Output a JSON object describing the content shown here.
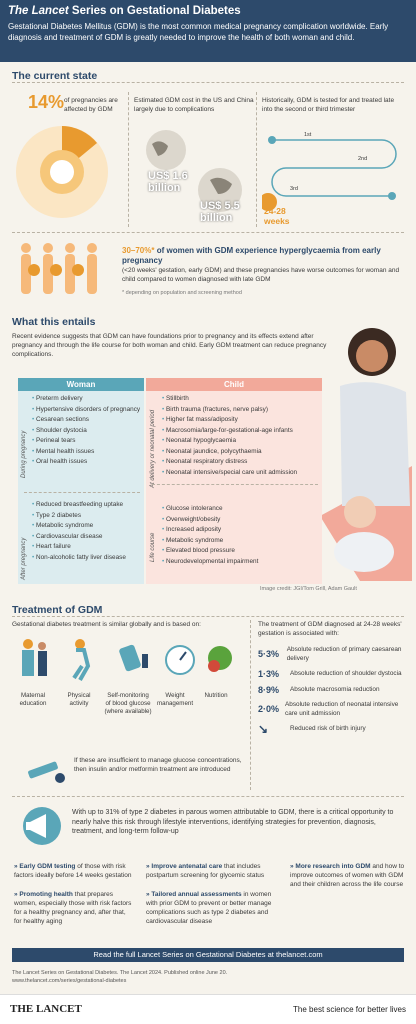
{
  "header": {
    "title_em": "The Lancet",
    "title_rest": " Series on Gestational Diabetes",
    "intro": "Gestational Diabetes Mellitus (GDM) is the most common medical pregnancy complication worldwide. Early diagnosis and treatment of GDM is greatly needed to improve the health of both woman and child."
  },
  "current": {
    "title": "The current state",
    "pct": "14%",
    "pct_text": "of pregnancies are affected by GDM",
    "cost_text": "Estimated GDM cost in the US and China largely due to complications",
    "us_cost": "US$ 1.6 billion",
    "china_cost": "US$ 5.5 billion",
    "test_text": "Historically, GDM is tested for and treated late into the second or third trimester",
    "tri1": "1st",
    "tri2": "2nd",
    "tri3": "3rd",
    "weeks": "24-28 weeks",
    "hyper_pct": "30–70%*",
    "hyper_text": "of women with GDM experience hyperglycaemia from early pregnancy",
    "hyper_detail": "(<20 weeks' gestation, early GDM) and these pregnancies have worse outcomes for woman and child compared to women diagnosed with late GDM",
    "footnote": "* depending on population and screening method"
  },
  "entails": {
    "title": "What this entails",
    "intro": "Recent evidence suggests that GDM can have foundations prior to pregnancy and its effects extend after pregnancy and through the life course for both woman and child. Early GDM treatment can reduce pregnancy complications.",
    "woman_title": "Woman",
    "child_title": "Child",
    "during_label": "During pregnancy",
    "after_label": "After pregnancy",
    "delivery_label": "At delivery or neonatal period",
    "life_label": "Life course",
    "woman_during": [
      "Preterm delivery",
      "Hypertensive disorders of pregnancy",
      "Cesarean sections",
      "Shoulder dystocia",
      "Perineal tears",
      "Mental health issues",
      "Oral health issues"
    ],
    "woman_after": [
      "Reduced breastfeeding uptake",
      "Type 2 diabetes",
      "Metabolic syndrome",
      "Cardiovascular disease",
      "Heart failure",
      "Non-alcoholic fatty liver disease"
    ],
    "child_delivery": [
      "Stillbirth",
      "Birth trauma (fractures, nerve palsy)",
      "Higher fat mass/adiposity",
      "Macrosomia/large-for-gestational-age infants",
      "Neonatal hypoglycaemia",
      "Neonatal jaundice, polycythaemia",
      "Neonatal respiratory distress",
      "Neonatal intensive/special care unit admission"
    ],
    "child_life": [
      "Glucose intolerance",
      "Overweight/obesity",
      "Increased adiposity",
      "Metabolic syndrome",
      "Elevated blood pressure",
      "Neurodevelopmental impairment"
    ],
    "credit": "Image credit: JGI/Tom Grill, Adam Gault"
  },
  "treatment": {
    "title": "Treatment of GDM",
    "intro": "Gestational diabetes treatment is similar globally and is based on:",
    "items": [
      "Maternal education",
      "Physical activity",
      "Self-monitoring of blood glucose (where available)",
      "Weight management",
      "Nutrition"
    ],
    "insufficient": "If these are insufficient to manage glucose concentrations, then insulin and/or metformin treatment are introduced",
    "assoc_title": "The treatment of GDM diagnosed at 24-28 weeks' gestation is associated with:",
    "outcomes": [
      {
        "pct": "5·3%",
        "text": "Absolute reduction of primary caesarean delivery"
      },
      {
        "pct": "1·3%",
        "text": "Absolute reduction of shoulder dystocia"
      },
      {
        "pct": "8·9%",
        "text": "Absolute macrosomia reduction"
      },
      {
        "pct": "2·0%",
        "text": "Absolute reduction of neonatal intensive care unit admission"
      },
      {
        "pct": "",
        "text": "Reduced risk of birth injury"
      }
    ]
  },
  "opportunity": {
    "text": "With up to 31% of type 2 diabetes in parous women attributable to GDM, there is a critical opportunity to nearly halve this risk through lifestyle interventions, identifying strategies for prevention, diagnosis, treatment, and long-term follow-up",
    "actions": [
      {
        "bold": "Early GDM testing",
        "text": " of those with risk factors ideally before 14 weeks gestation"
      },
      {
        "bold": "Promoting health",
        "text": " that prepares women, especially those with risk factors for a healthy pregnancy and, after that, for healthy aging"
      },
      {
        "bold": "Improve antenatal care",
        "text": " that includes postpartum screening for glycemic status"
      },
      {
        "bold": "Tailored annual assessments",
        "text": " in women with prior GDM to prevent or better manage complications such as type 2 diabetes and cardiovascular disease"
      },
      {
        "bold": "More research into GDM",
        "text": " and how to improve outcomes of women with GDM and their children across the life course"
      }
    ]
  },
  "banner": "Read the full Lancet Series on Gestational Diabetes at thelancet.com",
  "citation": "The Lancet Series on Gestational Diabetes. The Lancet 2024. Published online June 20.",
  "url": "www.thelancet.com/series/gestational-diabetes",
  "footer": {
    "logo": "THE LANCET",
    "tagline": "The best science for better lives"
  },
  "colors": {
    "navy": "#2d4a6b",
    "orange": "#e89a2f",
    "teal": "#5aa6b8",
    "pink": "#f2a99a"
  }
}
